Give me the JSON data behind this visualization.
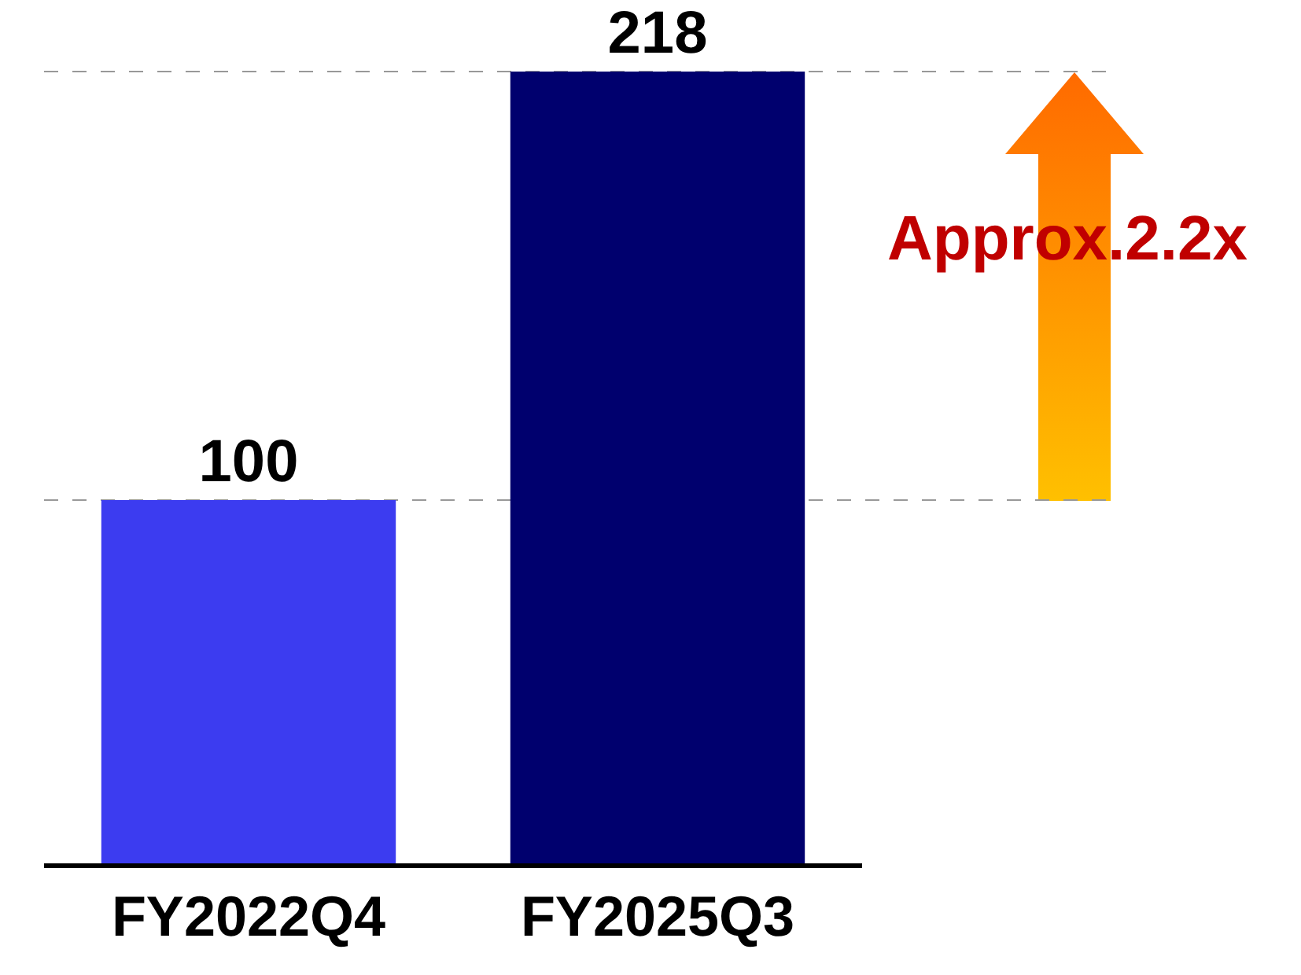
{
  "chart_data": {
    "type": "bar",
    "categories": [
      "FY2022Q4",
      "FY2025Q3"
    ],
    "values": [
      100,
      218
    ],
    "colors": [
      "#3c3cf0",
      "#00006e"
    ],
    "data_labels": true,
    "ref_lines": [
      {
        "axis": "y",
        "value": 100,
        "color": "#999999",
        "line_style": "dashed"
      },
      {
        "axis": "y",
        "value": 218,
        "color": "#999999",
        "line_style": "dashed"
      }
    ],
    "annotations": [
      "Approx.2.2x"
    ],
    "grid": false,
    "legend": false
  }
}
